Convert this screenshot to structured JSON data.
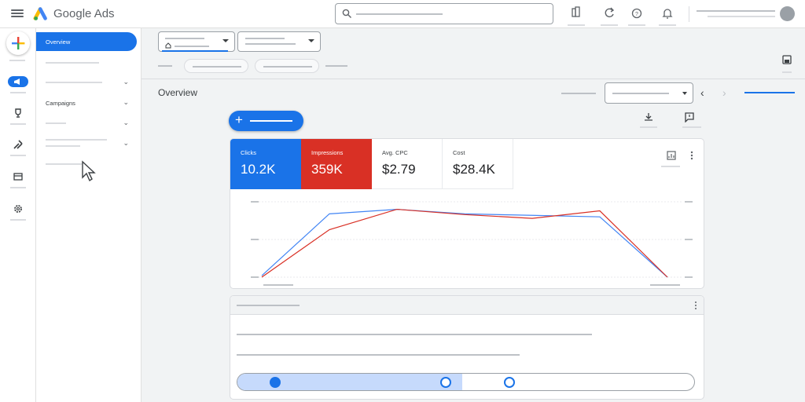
{
  "app": {
    "brand": "Google Ads"
  },
  "nav": {
    "overview_label": "Overview",
    "campaigns_label": "Campaigns"
  },
  "main": {
    "page_title": "Overview"
  },
  "metrics": [
    {
      "label": "Clicks",
      "value": "10.2K",
      "color": "#1a73e8"
    },
    {
      "label": "Impressions",
      "value": "359K",
      "color": "#d93025"
    },
    {
      "label": "Avg. CPC",
      "value": "$2.79"
    },
    {
      "label": "Cost",
      "value": "$28.4K"
    }
  ],
  "chart_data": {
    "type": "line",
    "title": "",
    "xlabel": "",
    "ylabel": "",
    "x": [
      1,
      2,
      3,
      4,
      5,
      6,
      7
    ],
    "ylim": [
      0,
      100
    ],
    "grid": true,
    "series": [
      {
        "color": "#4285f4",
        "values": [
          2,
          84,
          90,
          84,
          82,
          80,
          0
        ]
      },
      {
        "color": "#d93025",
        "values": [
          0,
          63,
          90,
          83,
          78,
          88,
          0
        ]
      }
    ]
  },
  "slider": {
    "value_fraction": 0.49
  },
  "colors": {
    "accent": "#1a73e8",
    "danger": "#d93025"
  },
  "icons": [
    "menu-icon",
    "google-ads-logo",
    "search-icon",
    "reports-icon",
    "refresh-icon",
    "help-icon",
    "notifications-icon",
    "create-plus-icon",
    "campaigns-icon",
    "goals-trophy-icon",
    "tools-icon",
    "billing-icon",
    "admin-gear-icon",
    "save-icon",
    "download-icon",
    "feedback-icon",
    "chart-settings-icon",
    "more-vert-icon",
    "mouse-cursor-icon"
  ]
}
